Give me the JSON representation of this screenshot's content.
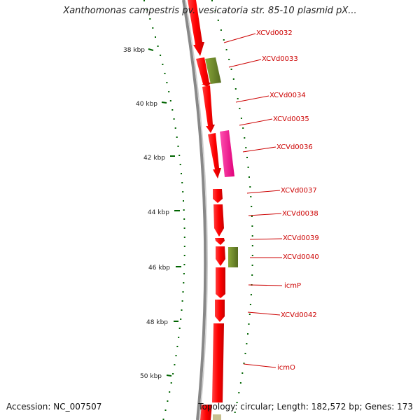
{
  "header": {
    "title": "Xanthomonas campestris pv. vesicatoria str. 85-10 plasmid pX..."
  },
  "footer": {
    "accession": "Accession: NC_007507",
    "topology": "Topology: circular; Length: 182,572 bp; Genes: 173"
  },
  "colors": {
    "cds": "#ff0000",
    "cds_olive": "#6b8e23",
    "cds_pink": "#ff1493",
    "label": "#cc0000",
    "tick": "#006400",
    "backbone": "#999999"
  },
  "ruler": {
    "unit": "kbp",
    "labels": [
      "38 kbp",
      "40 kbp",
      "42 kbp",
      "44 kbp",
      "46 kbp",
      "48 kbp",
      "50 kbp"
    ]
  },
  "genes": [
    {
      "label": "XCVd0032"
    },
    {
      "label": "XCVd0033"
    },
    {
      "label": "XCVd0034"
    },
    {
      "label": "XCVd0035"
    },
    {
      "label": "XCVd0036"
    },
    {
      "label": "XCVd0037"
    },
    {
      "label": "XCVd0038"
    },
    {
      "label": "XCVd0039"
    },
    {
      "label": "XCVd0040"
    },
    {
      "label": "icmP"
    },
    {
      "label": "XCVd0042"
    },
    {
      "label": "icmO"
    }
  ]
}
